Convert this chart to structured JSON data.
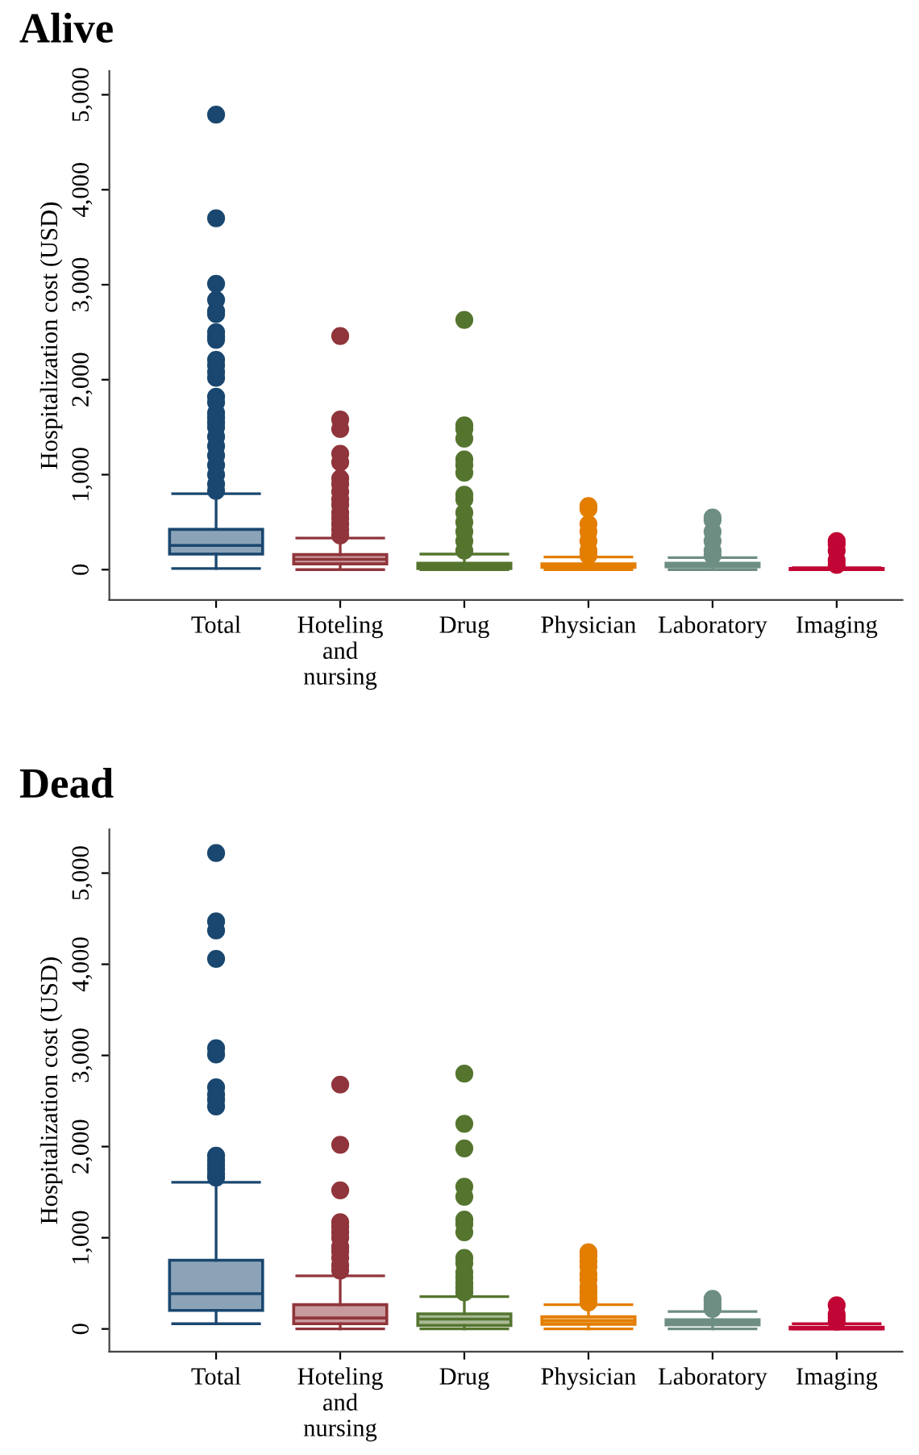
{
  "chart_data": [
    {
      "type": "box",
      "title": "Alive",
      "ylabel": "Hospitalization cost (USD)",
      "categories": [
        "Total",
        "Hoteling\nand\nnursing",
        "Drug",
        "Physician",
        "Laboratory",
        "Imaging"
      ],
      "colors": [
        "#1a476f",
        "#90353b",
        "#55752f",
        "#e37e00",
        "#6e8e84",
        "#c10534"
      ],
      "ylim": [
        -320,
        5250
      ],
      "yticks": [
        {
          "value": 0,
          "label": "0"
        },
        {
          "value": 1000,
          "label": "1,000"
        },
        {
          "value": 2000,
          "label": "2,000"
        },
        {
          "value": 3000,
          "label": "3,000"
        },
        {
          "value": 4000,
          "label": "4,000"
        },
        {
          "value": 5000,
          "label": "5,000"
        }
      ],
      "grid": false,
      "boxes": [
        {
          "low": 12,
          "q1": 164,
          "median": 255,
          "q3": 424,
          "high": 800,
          "outliers": [
            830,
            900,
            1000,
            1100,
            1200,
            1300,
            1400,
            1500,
            1550,
            1600,
            1650,
            1760,
            1820,
            2020,
            2080,
            2150,
            2210,
            2420,
            2450,
            2500,
            2690,
            2720,
            2840,
            3010,
            3700,
            4790
          ]
        },
        {
          "low": 0,
          "q1": 61,
          "median": 109,
          "q3": 158,
          "high": 333,
          "outliers": [
            360,
            420,
            480,
            540,
            600,
            680,
            740,
            820,
            900,
            960,
            1130,
            1220,
            1480,
            1580,
            2460
          ]
        },
        {
          "low": 0,
          "q1": 12,
          "median": 42,
          "q3": 67,
          "high": 164,
          "outliers": [
            200,
            300,
            400,
            500,
            600,
            740,
            790,
            1020,
            1100,
            1160,
            1380,
            1480,
            1520,
            2630
          ]
        },
        {
          "low": 0,
          "q1": 24,
          "median": 42,
          "q3": 61,
          "high": 133,
          "outliers": [
            150,
            200,
            300,
            400,
            480,
            640,
            670
          ]
        },
        {
          "low": 0,
          "q1": 30,
          "median": 48,
          "q3": 67,
          "high": 127,
          "outliers": [
            150,
            200,
            300,
            400,
            520,
            550
          ]
        },
        {
          "low": 0,
          "q1": 0,
          "median": 6,
          "q3": 12,
          "high": 20,
          "outliers": [
            50,
            100,
            200,
            270,
            300
          ]
        }
      ]
    },
    {
      "type": "box",
      "title": "Dead",
      "ylabel": "Hospitalization cost (USD)",
      "categories": [
        "Total",
        "Hoteling\nand\nnursing",
        "Drug",
        "Physician",
        "Laboratory",
        "Imaging"
      ],
      "colors": [
        "#1a476f",
        "#90353b",
        "#55752f",
        "#e37e00",
        "#6e8e84",
        "#c10534"
      ],
      "ylim": [
        -250,
        5480
      ],
      "yticks": [
        {
          "value": 0,
          "label": "0"
        },
        {
          "value": 1000,
          "label": "1,000"
        },
        {
          "value": 2000,
          "label": "2,000"
        },
        {
          "value": 3000,
          "label": "3,000"
        },
        {
          "value": 4000,
          "label": "4,000"
        },
        {
          "value": 5000,
          "label": "5,000"
        }
      ],
      "grid": false,
      "boxes": [
        {
          "low": 57,
          "q1": 203,
          "median": 386,
          "q3": 753,
          "high": 1608,
          "outliers": [
            1660,
            1700,
            1750,
            1800,
            1850,
            1900,
            2440,
            2510,
            2570,
            2650,
            3010,
            3080,
            4060,
            4370,
            4470,
            5220
          ]
        },
        {
          "low": 0,
          "q1": 57,
          "median": 120,
          "q3": 266,
          "high": 582,
          "outliers": [
            640,
            700,
            780,
            850,
            900,
            1000,
            1060,
            1120,
            1170,
            1520,
            2020,
            2680
          ]
        },
        {
          "low": 0,
          "q1": 38,
          "median": 108,
          "q3": 165,
          "high": 354,
          "outliers": [
            400,
            450,
            500,
            560,
            620,
            720,
            780,
            1060,
            1150,
            1200,
            1450,
            1560,
            1980,
            2250,
            2800
          ]
        },
        {
          "low": 0,
          "q1": 51,
          "median": 89,
          "q3": 133,
          "high": 266,
          "outliers": [
            290,
            340,
            400,
            460,
            540,
            600,
            680,
            740,
            800,
            840
          ]
        },
        {
          "low": 0,
          "q1": 44,
          "median": 70,
          "q3": 101,
          "high": 190,
          "outliers": [
            220,
            260,
            300,
            330
          ]
        },
        {
          "low": 0,
          "q1": 0,
          "median": 6,
          "q3": 19,
          "high": 57,
          "outliers": [
            80,
            120,
            160,
            260
          ]
        }
      ]
    }
  ]
}
